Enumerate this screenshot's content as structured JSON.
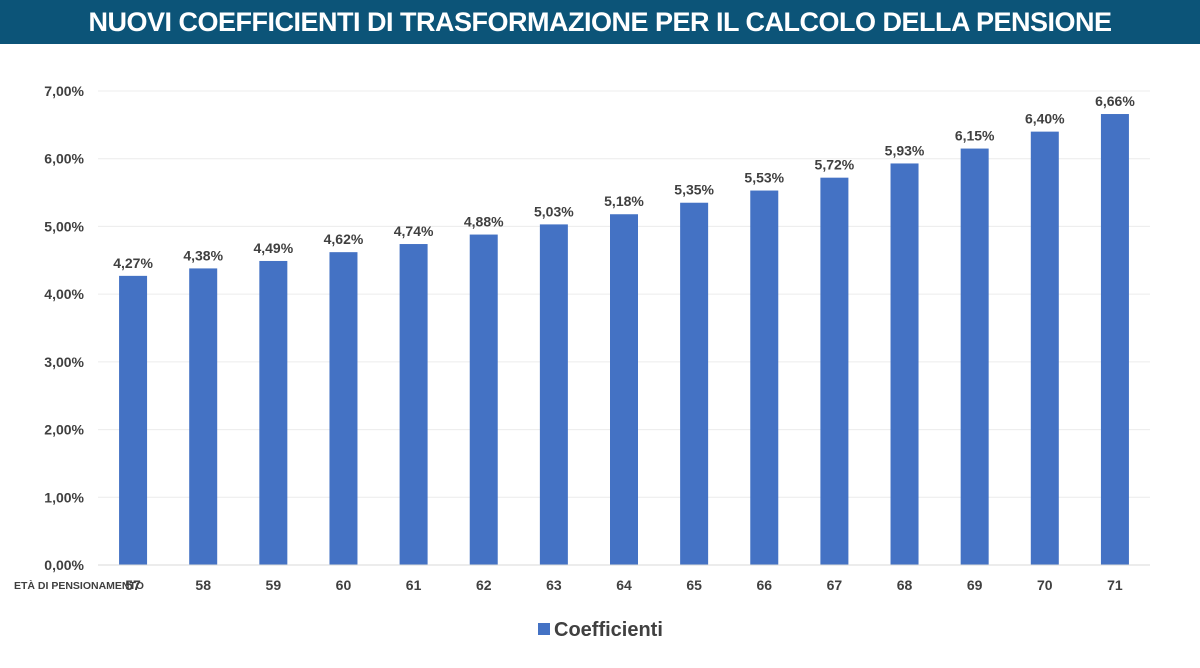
{
  "title": "NUOVI COEFFICIENTI DI TRASFORMAZIONE PER IL CALCOLO DELLA PENSIONE",
  "chart_data": {
    "type": "bar",
    "xlabel": "ETÀ DI PENSIONAMENTO",
    "ylabel": "",
    "categories": [
      "57",
      "58",
      "59",
      "60",
      "61",
      "62",
      "63",
      "64",
      "65",
      "66",
      "67",
      "68",
      "69",
      "70",
      "71"
    ],
    "series": [
      {
        "name": "Coefficienti",
        "values": [
          4.27,
          4.38,
          4.49,
          4.62,
          4.74,
          4.88,
          5.03,
          5.18,
          5.35,
          5.53,
          5.72,
          5.93,
          6.15,
          6.4,
          6.66
        ],
        "labels": [
          "4,27%",
          "4,38%",
          "4,49%",
          "4,62%",
          "4,74%",
          "4,88%",
          "5,03%",
          "5,18%",
          "5,35%",
          "5,53%",
          "5,72%",
          "5,93%",
          "6,15%",
          "6,40%",
          "6,66%"
        ]
      }
    ],
    "ylim": [
      0,
      7
    ],
    "yticks": [
      0,
      1,
      2,
      3,
      4,
      5,
      6,
      7
    ],
    "ytick_labels": [
      "0,00%",
      "1,00%",
      "2,00%",
      "3,00%",
      "4,00%",
      "5,00%",
      "6,00%",
      "7,00%"
    ],
    "grid": true,
    "legend_position": "bottom-center",
    "colors": {
      "bar": "#4472c4",
      "title_bg": "#0c5478",
      "gridline": "#ececec",
      "text": "#404040"
    }
  }
}
